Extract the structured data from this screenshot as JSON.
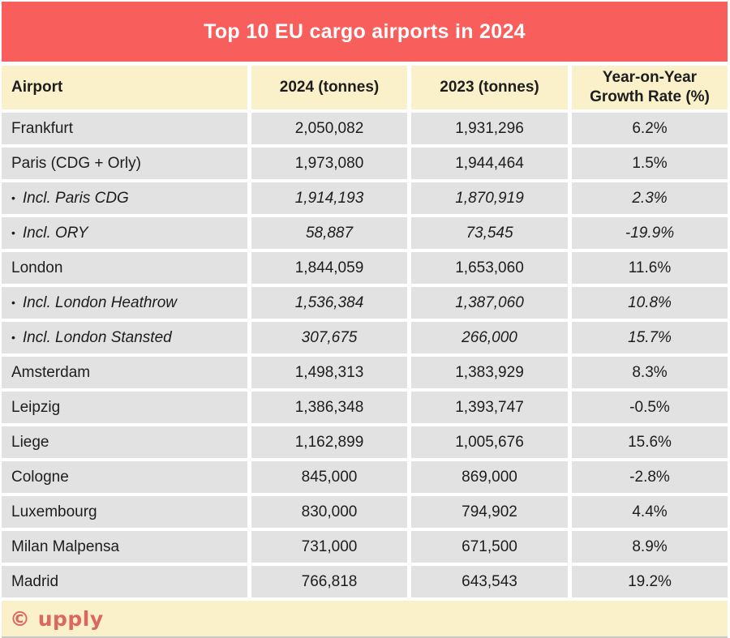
{
  "title_banner": "Top 10 EU cargo airports in 2024",
  "glyphs": {
    "bullet": "•"
  },
  "footer": {
    "logo": "© upply"
  },
  "colors": {
    "banner": "#f85e5b",
    "header_bg": "#faf0ca",
    "row_bg": "#e2e2e2",
    "logo": "#dc675e",
    "text": "#1d1d1d"
  },
  "chart_data": {
    "type": "table",
    "title": "Top 10 EU cargo airports in 2024",
    "columns": [
      "Airport",
      "2024 (tonnes)",
      "2023 (tonnes)",
      "Year-on-Year Growth Rate (%)"
    ],
    "rows": [
      {
        "airport": "Frankfurt",
        "t2024": "2,050,082",
        "t2023": "1,931,296",
        "growth": "6.2%",
        "sub": false
      },
      {
        "airport": "Paris (CDG + Orly)",
        "t2024": "1,973,080",
        "t2023": "1,944,464",
        "growth": "1.5%",
        "sub": false
      },
      {
        "airport": "Incl. Paris CDG",
        "t2024": "1,914,193",
        "t2023": "1,870,919",
        "growth": "2.3%",
        "sub": true
      },
      {
        "airport": "Incl. ORY",
        "t2024": "58,887",
        "t2023": "73,545",
        "growth": "-19.9%",
        "sub": true
      },
      {
        "airport": "London",
        "t2024": "1,844,059",
        "t2023": "1,653,060",
        "growth": "11.6%",
        "sub": false
      },
      {
        "airport": "Incl. London Heathrow",
        "t2024": "1,536,384",
        "t2023": "1,387,060",
        "growth": "10.8%",
        "sub": true
      },
      {
        "airport": "Incl. London Stansted",
        "t2024": "307,675",
        "t2023": "266,000",
        "growth": "15.7%",
        "sub": true
      },
      {
        "airport": "Amsterdam",
        "t2024": "1,498,313",
        "t2023": "1,383,929",
        "growth": "8.3%",
        "sub": false
      },
      {
        "airport": "Leipzig",
        "t2024": "1,386,348",
        "t2023": "1,393,747",
        "growth": "-0.5%",
        "sub": false
      },
      {
        "airport": "Liege",
        "t2024": "1,162,899",
        "t2023": "1,005,676",
        "growth": "15.6%",
        "sub": false
      },
      {
        "airport": "Cologne",
        "t2024": "845,000",
        "t2023": "869,000",
        "growth": "-2.8%",
        "sub": false
      },
      {
        "airport": "Luxembourg",
        "t2024": "830,000",
        "t2023": "794,902",
        "growth": "4.4%",
        "sub": false
      },
      {
        "airport": "Milan Malpensa",
        "t2024": "731,000",
        "t2023": "671,500",
        "growth": "8.9%",
        "sub": false
      },
      {
        "airport": "Madrid",
        "t2024": "766,818",
        "t2023": "643,543",
        "growth": "19.2%",
        "sub": false
      }
    ]
  }
}
